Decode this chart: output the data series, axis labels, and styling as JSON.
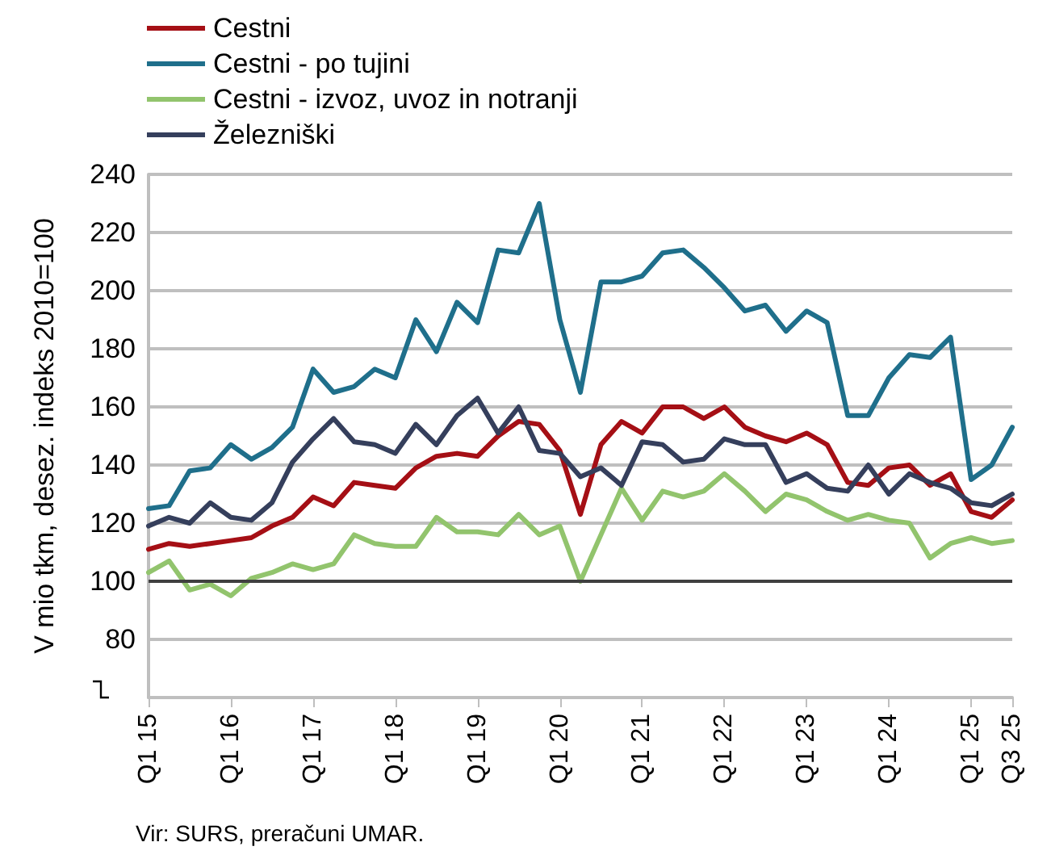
{
  "chart_data": {
    "type": "line",
    "ylabel": "V mio tkm, desez. indeks 2010=100",
    "annotations": [
      "Vir: SURS, preračuni UMAR."
    ],
    "categories": [
      "Q1 15",
      null,
      null,
      null,
      "Q1 16",
      null,
      null,
      null,
      "Q1 17",
      null,
      null,
      null,
      "Q1 18",
      null,
      null,
      null,
      "Q1 19",
      null,
      null,
      null,
      "Q1 20",
      null,
      null,
      null,
      "Q1 21",
      null,
      null,
      null,
      "Q1 22",
      null,
      null,
      null,
      "Q1 23",
      null,
      null,
      null,
      "Q1 24",
      null,
      null,
      null,
      "Q1 25",
      null,
      "Q3 25"
    ],
    "series": [
      {
        "name": "Cestni",
        "color": "#a50f15",
        "values": [
          111,
          113,
          112,
          113,
          114,
          115,
          119,
          122,
          129,
          126,
          134,
          133,
          132,
          139,
          143,
          144,
          143,
          150,
          155,
          154,
          145,
          123,
          147,
          155,
          151,
          160,
          160,
          156,
          160,
          153,
          150,
          148,
          151,
          147,
          134,
          133,
          139,
          140,
          133,
          137,
          124,
          122,
          128
        ]
      },
      {
        "name": "Cestni - po tujini",
        "color": "#1f6f8b",
        "values": [
          125,
          126,
          138,
          139,
          147,
          142,
          146,
          153,
          173,
          165,
          167,
          173,
          170,
          190,
          179,
          196,
          189,
          214,
          213,
          230,
          190,
          165,
          203,
          203,
          205,
          213,
          214,
          208,
          201,
          193,
          195,
          186,
          193,
          189,
          157,
          157,
          170,
          178,
          177,
          184,
          135,
          140,
          153
        ]
      },
      {
        "name": "Cestni - izvoz, uvoz in notranji",
        "color": "#92c46d",
        "values": [
          103,
          107,
          97,
          99,
          95,
          101,
          103,
          106,
          104,
          106,
          116,
          113,
          112,
          112,
          122,
          117,
          117,
          116,
          123,
          116,
          119,
          100,
          116,
          132,
          121,
          131,
          129,
          131,
          137,
          131,
          124,
          130,
          128,
          124,
          121,
          123,
          121,
          120,
          108,
          113,
          115,
          113,
          114
        ]
      },
      {
        "name": "Železniški",
        "color": "#353f5c",
        "values": [
          119,
          122,
          120,
          127,
          122,
          121,
          127,
          141,
          149,
          156,
          148,
          147,
          144,
          154,
          147,
          157,
          163,
          151,
          160,
          145,
          144,
          136,
          139,
          133,
          148,
          147,
          141,
          142,
          149,
          147,
          147,
          134,
          137,
          132,
          131,
          140,
          130,
          137,
          134,
          132,
          127,
          126,
          130
        ]
      }
    ],
    "ylim": [
      60,
      240
    ],
    "yticks": [
      {
        "value": 60,
        "label": null
      },
      80,
      100,
      120,
      140,
      160,
      180,
      200,
      220,
      240
    ],
    "ref_lines": [
      {
        "axis": "y",
        "value": 100,
        "color": "#404040"
      }
    ],
    "grid": "y",
    "legend": "top left",
    "marker": "none",
    "line_style": "solid"
  }
}
